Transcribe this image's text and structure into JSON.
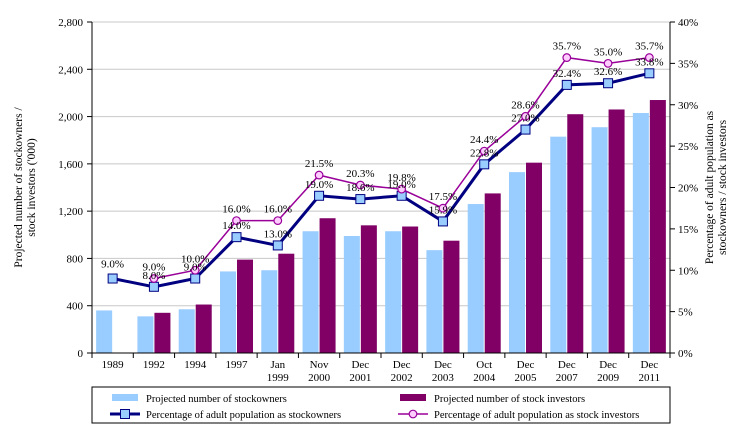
{
  "chart_data": {
    "type": "bar",
    "categories": [
      [
        "1989"
      ],
      [
        "1992"
      ],
      [
        "1994"
      ],
      [
        "1997"
      ],
      [
        "Jan",
        "1999"
      ],
      [
        "Nov",
        "2000"
      ],
      [
        "Dec",
        "2001"
      ],
      [
        "Dec",
        "2002"
      ],
      [
        "Dec",
        "2003"
      ],
      [
        "Oct",
        "2004"
      ],
      [
        "Dec",
        "2005"
      ],
      [
        "Dec",
        "2007"
      ],
      [
        "Dec",
        "2009"
      ],
      [
        "Dec",
        "2011"
      ]
    ],
    "y_left": {
      "label": [
        "Projected number of stockowners /",
        "stock investors ('000)"
      ],
      "ylim": [
        0,
        2800
      ],
      "ticks": [
        0,
        400,
        800,
        1200,
        1600,
        2000,
        2400,
        2800
      ],
      "tick_labels": [
        "0",
        "400",
        "800",
        "1,200",
        "1,600",
        "2,000",
        "2,400",
        "2,800"
      ]
    },
    "y_right": {
      "label": [
        "Percentage of adult population as",
        "stockowners / stock investors"
      ],
      "ylim": [
        0,
        40
      ],
      "ticks": [
        0,
        5,
        10,
        15,
        20,
        25,
        30,
        35,
        40
      ],
      "tick_labels": [
        "0%",
        "5%",
        "10%",
        "15%",
        "20%",
        "25%",
        "30%",
        "35%",
        "40%"
      ]
    },
    "series": [
      {
        "name": "Projected number of stockowners",
        "kind": "bar",
        "axis": "left",
        "color": "#99ccff",
        "values": [
          360,
          310,
          370,
          690,
          700,
          1030,
          990,
          1030,
          870,
          1260,
          1530,
          1830,
          1910,
          2030
        ]
      },
      {
        "name": "Projected number of stock investors",
        "kind": "bar",
        "axis": "left",
        "color": "#800066",
        "values": [
          null,
          340,
          410,
          790,
          840,
          1140,
          1080,
          1070,
          950,
          1350,
          1610,
          2020,
          2060,
          2140
        ]
      },
      {
        "name": "Percentage of adult population as stockowners",
        "kind": "line",
        "axis": "right",
        "color": "#000080",
        "marker_fill": "#99ccff",
        "marker": "square",
        "values": [
          9.0,
          8.0,
          9.0,
          14.0,
          13.0,
          19.0,
          18.6,
          19.0,
          15.9,
          22.8,
          27.0,
          32.4,
          32.6,
          33.8
        ],
        "labels": [
          "9.0%",
          "8.0%",
          "9.0%",
          "14.0%",
          "13.0%",
          "19.0%",
          "18.6%",
          "19.0%",
          "15.9%",
          "22.8%",
          "27.0%",
          "32.4%",
          "32.6%",
          "33.8%"
        ]
      },
      {
        "name": "Percentage of adult population as stock investors",
        "kind": "line",
        "axis": "right",
        "color": "#990099",
        "marker_fill": "#ffccff",
        "marker": "circle",
        "values": [
          null,
          9.0,
          10.0,
          16.0,
          16.0,
          21.5,
          20.3,
          19.8,
          17.5,
          24.4,
          28.6,
          35.7,
          35.0,
          35.7
        ],
        "labels": [
          null,
          "9.0%",
          "10.0%",
          "16.0%",
          "16.0%",
          "21.5%",
          "20.3%",
          "19.8%",
          "17.5%",
          "24.4%",
          "28.6%",
          "35.7%",
          "35.0%",
          "35.7%"
        ]
      }
    ]
  }
}
